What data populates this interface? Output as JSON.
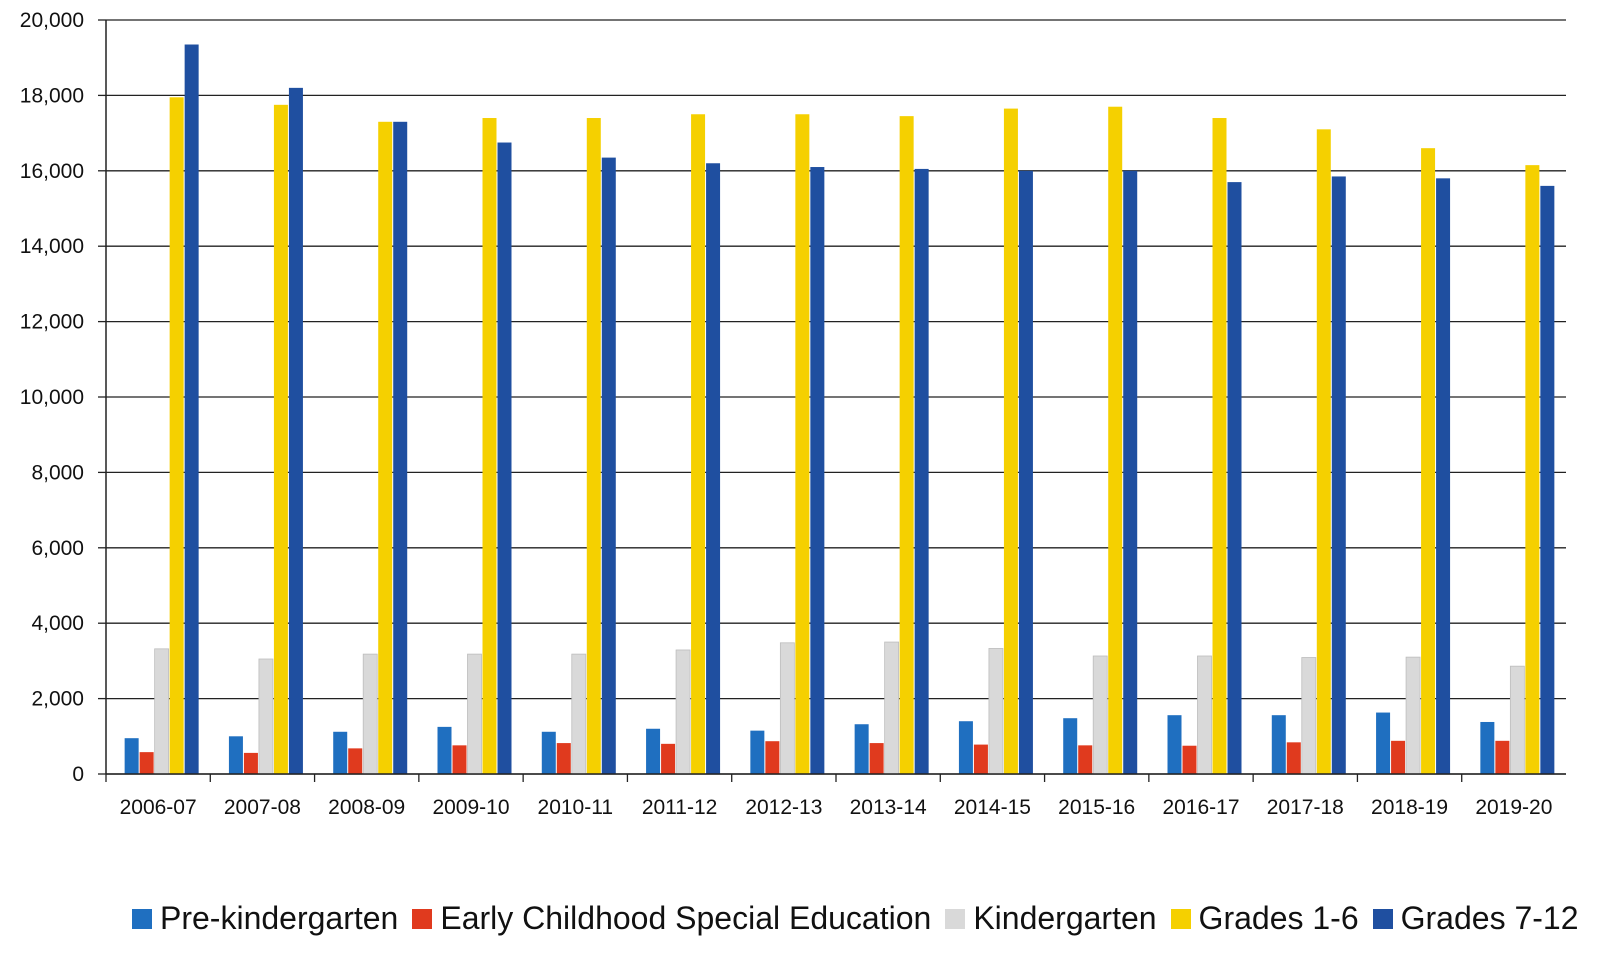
{
  "chart_data": {
    "type": "bar",
    "categories": [
      "2006-07",
      "2007-08",
      "2008-09",
      "2009-10",
      "2010-11",
      "2011-12",
      "2012-13",
      "2013-14",
      "2014-15",
      "2015-16",
      "2016-17",
      "2017-18",
      "2018-19",
      "2019-20"
    ],
    "series": [
      {
        "name": "Pre-kindergarten",
        "color": "#1f6fc0",
        "values": [
          950,
          1000,
          1120,
          1250,
          1120,
          1200,
          1150,
          1320,
          1400,
          1480,
          1560,
          1560,
          1630,
          1380
        ]
      },
      {
        "name": "Early Childhood Special Education",
        "color": "#e03a1e",
        "values": [
          580,
          560,
          680,
          760,
          820,
          800,
          870,
          820,
          780,
          760,
          750,
          840,
          880,
          880
        ]
      },
      {
        "name": "Kindergarten",
        "color": "#d9d9d9",
        "values": [
          3320,
          3050,
          3180,
          3180,
          3180,
          3290,
          3480,
          3500,
          3330,
          3130,
          3130,
          3090,
          3100,
          2860
        ]
      },
      {
        "name": "Grades 1-6",
        "color": "#f5d000",
        "values": [
          17950,
          17750,
          17300,
          17400,
          17400,
          17500,
          17500,
          17450,
          17650,
          17700,
          17400,
          17100,
          16600,
          16150
        ]
      },
      {
        "name": "Grades 7-12",
        "color": "#1f4fa0",
        "values": [
          19350,
          18200,
          17300,
          16750,
          16350,
          16200,
          16100,
          16050,
          16000,
          16000,
          15700,
          15850,
          15800,
          15600
        ]
      }
    ],
    "ylim": [
      0,
      20000
    ],
    "yticks": [
      "0",
      "2,000",
      "4,000",
      "6,000",
      "8,000",
      "10,000",
      "12,000",
      "14,000",
      "16,000",
      "18,000",
      "20,000"
    ],
    "grid": true,
    "legend_position": "bottom"
  }
}
